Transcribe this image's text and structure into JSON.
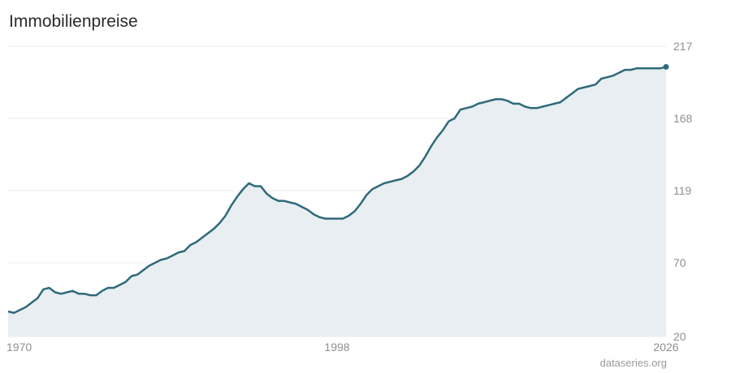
{
  "header": {
    "title": "Immobilienpreise"
  },
  "footer": {
    "source": "dataseries.org"
  },
  "colors": {
    "line": "#2f6a7a",
    "area": "#e8eef1",
    "grid": "#ebeef0",
    "tick": "#8f8f8f"
  },
  "chart_data": {
    "type": "area",
    "title": "Immobilienpreise",
    "xlabel": "",
    "ylabel": "",
    "xlim": [
      1970,
      2026
    ],
    "ylim": [
      20,
      217
    ],
    "y_ticks": [
      217,
      168,
      119,
      70,
      20
    ],
    "x_ticks": [
      1970,
      1998,
      2026
    ],
    "y_axis_position": "right",
    "grid": true,
    "series": [
      {
        "x": [
          1970.0,
          1970.5,
          1971.0,
          1971.5,
          1972.0,
          1972.5,
          1973.0,
          1973.5,
          1974.0,
          1974.5,
          1975.0,
          1975.5,
          1976.0,
          1976.5,
          1977.0,
          1977.5,
          1978.0,
          1978.5,
          1979.0,
          1979.5,
          1980.0,
          1980.5,
          1981.0,
          1981.5,
          1982.0,
          1982.5,
          1983.0,
          1983.5,
          1984.0,
          1984.5,
          1985.0,
          1985.5,
          1986.0,
          1986.5,
          1987.0,
          1987.5,
          1988.0,
          1988.5,
          1989.0,
          1989.5,
          1990.0,
          1990.5,
          1991.0,
          1991.5,
          1992.0,
          1992.5,
          1993.0,
          1993.5,
          1994.0,
          1994.5,
          1995.0,
          1995.5,
          1996.0,
          1996.5,
          1997.0,
          1997.5,
          1998.0,
          1998.5,
          1999.0,
          1999.5,
          2000.0,
          2000.5,
          2001.0,
          2001.5,
          2002.0,
          2002.5,
          2003.0,
          2003.5,
          2004.0,
          2004.5,
          2005.0,
          2005.5,
          2006.0,
          2006.5,
          2007.0,
          2007.5,
          2008.0,
          2008.5,
          2009.0,
          2009.5,
          2010.0,
          2010.5,
          2011.0,
          2011.5,
          2012.0,
          2012.5,
          2013.0,
          2013.5,
          2014.0,
          2014.5,
          2015.0,
          2015.5,
          2016.0,
          2016.5,
          2017.0,
          2017.5,
          2018.0,
          2018.5,
          2019.0,
          2019.5,
          2020.0,
          2020.5,
          2021.0,
          2021.5,
          2022.0,
          2022.5,
          2023.0,
          2023.5,
          2024.0,
          2024.5,
          2025.0,
          2025.5,
          2026.0
        ],
        "values": [
          37,
          36,
          38,
          40,
          43,
          46,
          52,
          53,
          50,
          49,
          50,
          51,
          49,
          49,
          48,
          48,
          51,
          53,
          53,
          55,
          57,
          61,
          62,
          65,
          68,
          70,
          72,
          73,
          75,
          77,
          78,
          82,
          84,
          87,
          90,
          93,
          97,
          102,
          109,
          115,
          120,
          124,
          122,
          122,
          117,
          114,
          112,
          112,
          111,
          110,
          108,
          106,
          103,
          101,
          100,
          100,
          100,
          100,
          102,
          105,
          110,
          116,
          120,
          122,
          124,
          125,
          126,
          127,
          129,
          132,
          136,
          142,
          149,
          155,
          160,
          166,
          168,
          174,
          175,
          176,
          178,
          179,
          180,
          181,
          181,
          180,
          178,
          178,
          176,
          175,
          175,
          176,
          177,
          178,
          179,
          182,
          185,
          188,
          189,
          190,
          191,
          195,
          196,
          197,
          199,
          201,
          201,
          202,
          202,
          202,
          202,
          202,
          203
        ]
      }
    ]
  }
}
